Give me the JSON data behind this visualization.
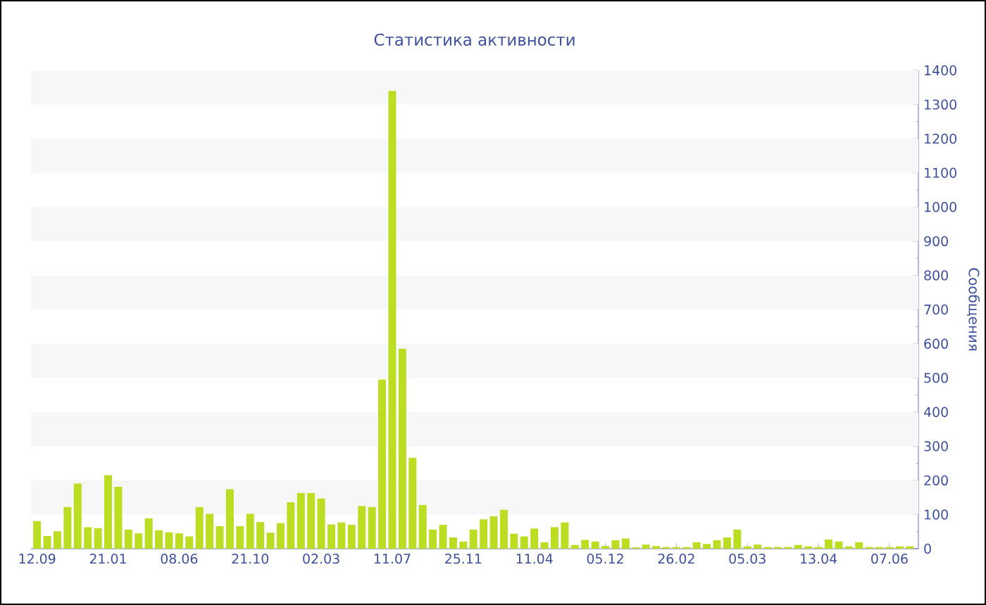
{
  "chart_data": {
    "type": "bar",
    "title": "Статистика активности",
    "ylabel": "Сообщения",
    "categories": [
      "12.09",
      null,
      null,
      null,
      null,
      null,
      null,
      "21.01",
      null,
      null,
      null,
      null,
      null,
      null,
      "08.06",
      null,
      null,
      null,
      null,
      null,
      null,
      "21.10",
      null,
      null,
      null,
      null,
      null,
      null,
      "02.03",
      null,
      null,
      null,
      null,
      null,
      null,
      "11.07",
      null,
      null,
      null,
      null,
      null,
      null,
      "25.11",
      null,
      null,
      null,
      null,
      null,
      null,
      "11.04",
      null,
      null,
      null,
      null,
      null,
      null,
      "05.12",
      null,
      null,
      null,
      null,
      null,
      null,
      "26.02",
      null,
      null,
      null,
      null,
      null,
      null,
      "05.03",
      null,
      null,
      null,
      null,
      null,
      null,
      "13.04",
      null,
      null,
      null,
      null,
      null,
      null,
      "07.06",
      null,
      null
    ],
    "values": [
      81,
      37,
      51,
      122,
      191,
      63,
      60,
      215,
      181,
      56,
      45,
      89,
      54,
      48,
      45,
      36,
      122,
      102,
      66,
      174,
      66,
      102,
      78,
      47,
      75,
      136,
      163,
      163,
      147,
      71,
      77,
      70,
      125,
      122,
      495,
      1340,
      585,
      266,
      128,
      56,
      70,
      33,
      21,
      56,
      86,
      95,
      114,
      44,
      36,
      59,
      19,
      63,
      77,
      11,
      26,
      21,
      8,
      25,
      30,
      4,
      12,
      8,
      5,
      5,
      5,
      19,
      14,
      25,
      33,
      56,
      7,
      12,
      5,
      5,
      5,
      11,
      7,
      5,
      27,
      21,
      7,
      19,
      5,
      5,
      5,
      7,
      7
    ],
    "color": "#bbdd22",
    "ylim": [
      0,
      1400
    ],
    "yticks": [
      0,
      100,
      200,
      300,
      400,
      500,
      600,
      700,
      800,
      900,
      1000,
      1100,
      1200,
      1300,
      1400
    ],
    "bands": [
      {
        "axis": "y",
        "from": 100,
        "to": 200,
        "color": "#f7f7f7"
      },
      {
        "axis": "y",
        "from": 300,
        "to": 400,
        "color": "#f7f7f7"
      },
      {
        "axis": "y",
        "from": 500,
        "to": 600,
        "color": "#f7f7f7"
      },
      {
        "axis": "y",
        "from": 700,
        "to": 800,
        "color": "#f7f7f7"
      },
      {
        "axis": "y",
        "from": 900,
        "to": 1000,
        "color": "#f7f7f7"
      },
      {
        "axis": "y",
        "from": 1100,
        "to": 1200,
        "color": "#f7f7f7"
      },
      {
        "axis": "y",
        "from": 1300,
        "to": 1400,
        "color": "#f7f7f7"
      }
    ]
  }
}
